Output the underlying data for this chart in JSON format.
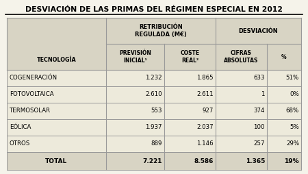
{
  "title": "DESVIACIÓN DE LAS PRIMAS DEL RÉGIMEN ESPECIAL EN 2012",
  "rows": [
    [
      "COGENERACIÓN",
      "1.232",
      "1.865",
      "633",
      "51%"
    ],
    [
      "FOTOVOLTAICA",
      "2.610",
      "2.611",
      "1",
      "0%"
    ],
    [
      "TERMOSOLAR",
      "553",
      "927",
      "374",
      "68%"
    ],
    [
      "EÓLICA",
      "1.937",
      "2.037",
      "100",
      "5%"
    ],
    [
      "OTROS",
      "889",
      "1.146",
      "257",
      "29%"
    ]
  ],
  "total_row": [
    "TOTAL",
    "7.221",
    "8.586",
    "1.365",
    "19%"
  ],
  "bg_color": "#edeadb",
  "header_bg": "#d8d4c4",
  "border_color": "#999999",
  "title_color": "#000000"
}
